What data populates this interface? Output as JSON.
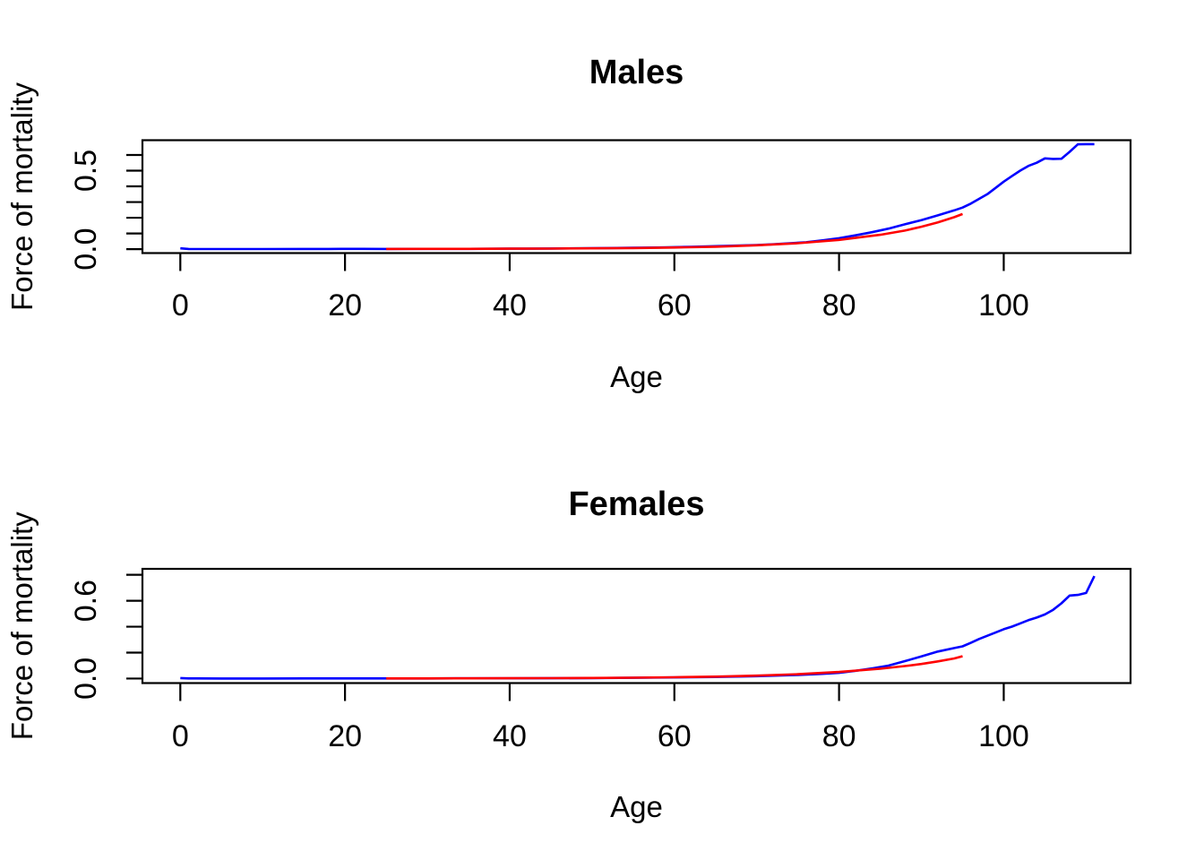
{
  "page": {
    "background": "#ffffff"
  },
  "chart_data": [
    {
      "type": "line",
      "title": "Males",
      "xlabel": "Age",
      "ylabel": "Force of mortality",
      "xlim": [
        -4.6,
        115.4
      ],
      "ylim": [
        -0.025,
        0.694
      ],
      "x_ticks": [
        0,
        20,
        40,
        60,
        80,
        100
      ],
      "x_tick_labels": [
        "0",
        "20",
        "40",
        "60",
        "80",
        "100"
      ],
      "y_ticks": [
        0,
        0.1,
        0.2,
        0.3,
        0.4,
        0.5,
        0.6
      ],
      "y_tick_labels_shown": [
        {
          "value": 0,
          "label": "0.0"
        },
        {
          "value": 0.5,
          "label": "0.5"
        }
      ],
      "grid": false,
      "legend": "none",
      "axis_color": "#000000",
      "series": [
        {
          "name": "observed",
          "color": "#0000ff",
          "x": [
            0,
            1,
            2,
            5,
            10,
            15,
            18,
            20,
            22,
            25,
            28,
            30,
            32,
            35,
            38,
            40,
            42,
            45,
            48,
            50,
            52,
            55,
            58,
            60,
            62,
            65,
            68,
            70,
            72,
            74,
            76,
            78,
            80,
            82,
            84,
            86,
            88,
            90,
            92,
            94,
            95,
            96,
            97,
            98,
            99,
            100,
            101,
            102,
            103,
            104,
            105,
            106,
            107,
            108,
            109,
            110,
            111
          ],
          "y": [
            0.005,
            0.001,
            0.0008,
            0.0005,
            0.0004,
            0.001,
            0.0014,
            0.0016,
            0.0016,
            0.0015,
            0.0016,
            0.0016,
            0.0017,
            0.002,
            0.0024,
            0.0028,
            0.0032,
            0.004,
            0.005,
            0.006,
            0.007,
            0.0085,
            0.0105,
            0.0125,
            0.015,
            0.019,
            0.023,
            0.026,
            0.031,
            0.037,
            0.044,
            0.056,
            0.07,
            0.088,
            0.108,
            0.131,
            0.158,
            0.185,
            0.215,
            0.247,
            0.265,
            0.29,
            0.32,
            0.35,
            0.39,
            0.43,
            0.465,
            0.5,
            0.53,
            0.55,
            0.578,
            0.575,
            0.576,
            0.62,
            0.668,
            0.669,
            0.669
          ]
        },
        {
          "name": "fitted",
          "color": "#ff0000",
          "x": [
            25,
            30,
            35,
            40,
            45,
            50,
            55,
            60,
            65,
            70,
            75,
            80,
            85,
            88,
            90,
            92,
            94,
            95
          ],
          "y": [
            0.0013,
            0.0016,
            0.0021,
            0.0027,
            0.0036,
            0.005,
            0.0071,
            0.0104,
            0.0157,
            0.0244,
            0.038,
            0.0588,
            0.0915,
            0.118,
            0.143,
            0.171,
            0.204,
            0.224
          ]
        }
      ]
    },
    {
      "type": "line",
      "title": "Females",
      "xlabel": "Age",
      "ylabel": "Force of mortality",
      "xlim": [
        -4.6,
        115.4
      ],
      "ylim": [
        -0.035,
        0.846
      ],
      "x_ticks": [
        0,
        20,
        40,
        60,
        80,
        100
      ],
      "x_tick_labels": [
        "0",
        "20",
        "40",
        "60",
        "80",
        "100"
      ],
      "y_ticks": [
        0,
        0.2,
        0.4,
        0.6,
        0.8
      ],
      "y_tick_labels_shown": [
        {
          "value": 0,
          "label": "0.0"
        },
        {
          "value": 0.6,
          "label": "0.6"
        }
      ],
      "grid": false,
      "legend": "none",
      "axis_color": "#000000",
      "series": [
        {
          "name": "observed",
          "color": "#0000ff",
          "x": [
            0,
            1,
            2,
            5,
            10,
            15,
            20,
            25,
            30,
            35,
            40,
            45,
            50,
            55,
            60,
            65,
            70,
            75,
            78,
            80,
            82,
            84,
            86,
            88,
            90,
            92,
            94,
            95,
            96,
            97,
            98,
            99,
            100,
            101,
            102,
            103,
            104,
            105,
            106,
            107,
            108,
            109,
            110,
            111
          ],
          "y": [
            0.004,
            0.0008,
            0.0006,
            0.0004,
            0.0003,
            0.0006,
            0.0008,
            0.0009,
            0.001,
            0.0013,
            0.0018,
            0.0026,
            0.0038,
            0.0056,
            0.0082,
            0.0122,
            0.0185,
            0.028,
            0.036,
            0.044,
            0.06,
            0.078,
            0.1,
            0.134,
            0.17,
            0.208,
            0.235,
            0.248,
            0.275,
            0.305,
            0.33,
            0.355,
            0.38,
            0.4,
            0.425,
            0.45,
            0.47,
            0.494,
            0.53,
            0.58,
            0.64,
            0.645,
            0.66,
            0.79
          ]
        },
        {
          "name": "fitted",
          "color": "#ff0000",
          "x": [
            25,
            30,
            35,
            40,
            45,
            50,
            55,
            60,
            65,
            70,
            75,
            80,
            85,
            88,
            90,
            92,
            94,
            95
          ],
          "y": [
            0.0008,
            0.0011,
            0.0015,
            0.0021,
            0.003,
            0.0045,
            0.0067,
            0.0099,
            0.0148,
            0.0223,
            0.0335,
            0.0504,
            0.0756,
            0.096,
            0.112,
            0.132,
            0.155,
            0.172
          ]
        }
      ]
    }
  ]
}
